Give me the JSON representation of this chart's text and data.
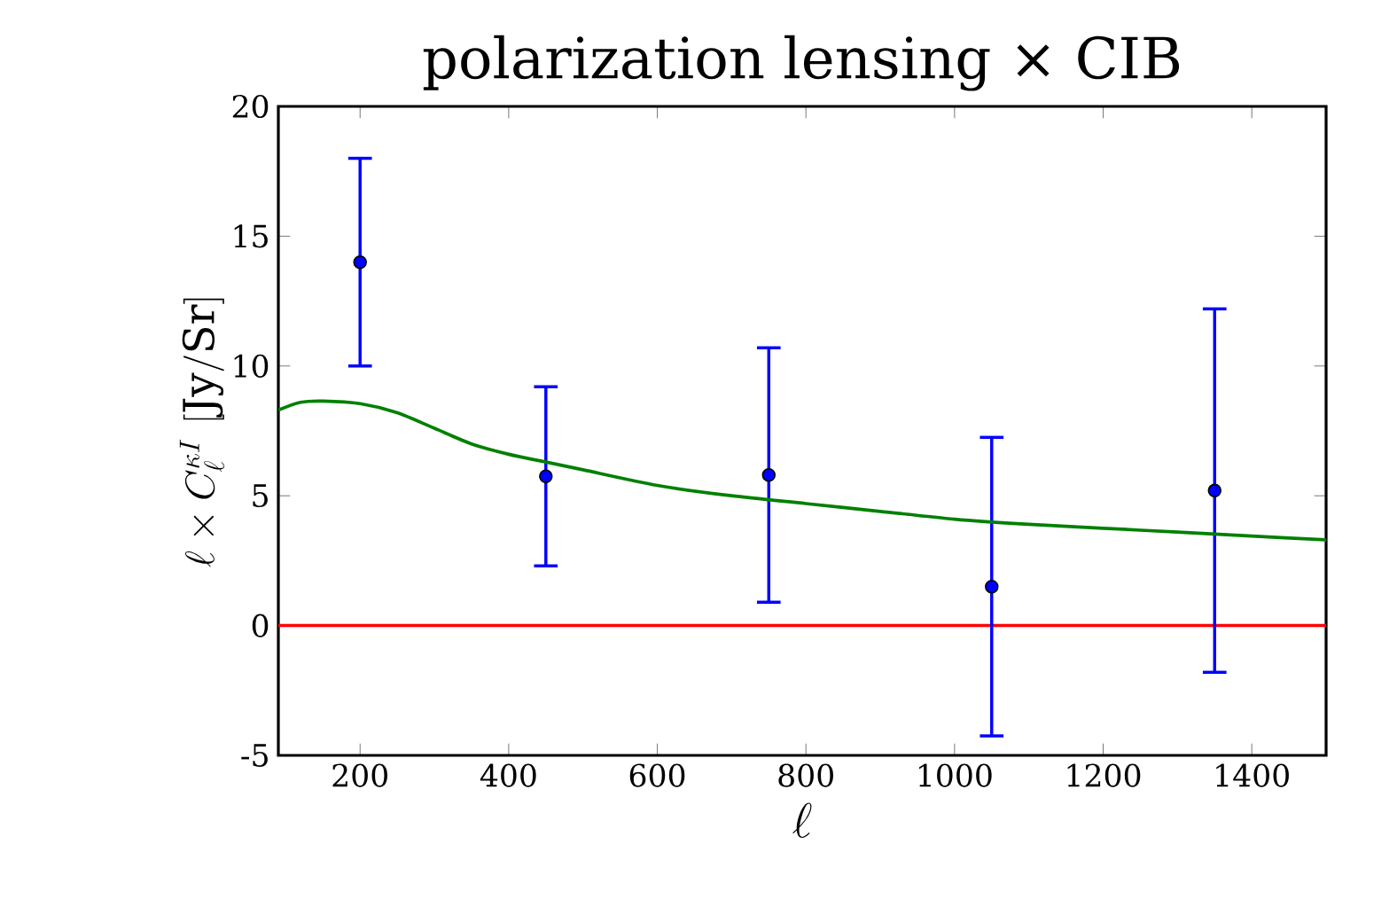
{
  "chart_data": {
    "type": "scatter",
    "title": "polarization lensing × CIB",
    "xlabel": "\\ell",
    "ylabel": "\\ell \\times C_\\ell^{\\kappa I}\\ [\\mathrm{Jy/Sr}]",
    "xlim": [
      90,
      1500
    ],
    "ylim": [
      -5,
      20
    ],
    "xticks": [
      200,
      400,
      600,
      800,
      1000,
      1200,
      1400
    ],
    "yticks": [
      -5,
      0,
      5,
      10,
      15,
      20
    ],
    "grid": false,
    "series": [
      {
        "color": "#0000ff",
        "marker": "circle",
        "x": [
          200,
          450,
          750,
          1050,
          1350
        ],
        "values": [
          14,
          5.75,
          5.8,
          1.5,
          5.2
        ],
        "errors": [
          4,
          3.45,
          4.9,
          5.75,
          7
        ]
      },
      {
        "type": "line",
        "color": "#008000",
        "marker": "none",
        "line_style": "solid",
        "x": [
          90,
          120,
          150,
          200,
          250,
          300,
          350,
          400,
          450,
          500,
          600,
          700,
          800,
          900,
          1000,
          1100,
          1200,
          1300,
          1400,
          1500
        ],
        "values": [
          8.3,
          8.6,
          8.65,
          8.55,
          8.2,
          7.6,
          7.0,
          6.6,
          6.3,
          6.0,
          5.4,
          5.0,
          4.7,
          4.4,
          4.1,
          3.9,
          3.75,
          3.6,
          3.45,
          3.3
        ]
      }
    ],
    "ref_lines": [
      {
        "axis": "y",
        "value": 0,
        "color": "#ff0000"
      }
    ]
  }
}
